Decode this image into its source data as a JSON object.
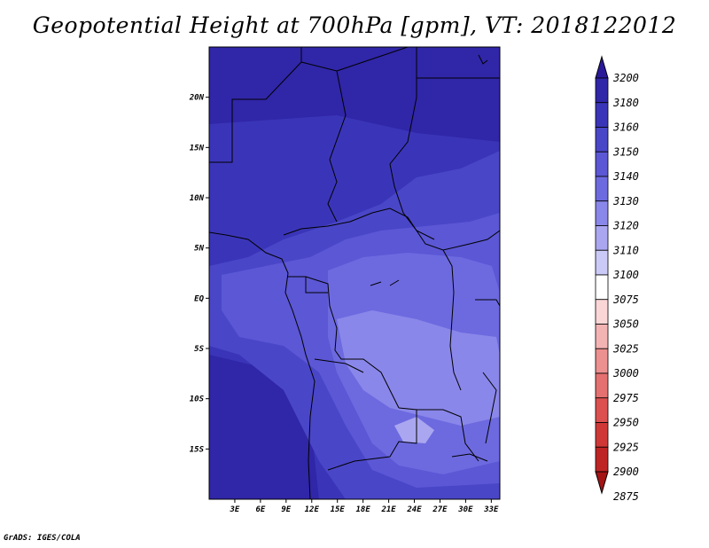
{
  "title": "Geopotential Height at 700hPa [gpm], VT: 2018122012",
  "footer": "GrADS: IGES/COLA",
  "map": {
    "lat_range": [
      -20,
      25
    ],
    "lon_range": [
      0,
      34
    ],
    "lat_ticks": [
      {
        "value": 20,
        "label": "20N"
      },
      {
        "value": 15,
        "label": "15N"
      },
      {
        "value": 10,
        "label": "10N"
      },
      {
        "value": 5,
        "label": "5N"
      },
      {
        "value": 0,
        "label": "EQ"
      },
      {
        "value": -5,
        "label": "5S"
      },
      {
        "value": -10,
        "label": "10S"
      },
      {
        "value": -15,
        "label": "15S"
      }
    ],
    "lon_ticks": [
      {
        "value": 3,
        "label": "3E"
      },
      {
        "value": 6,
        "label": "6E"
      },
      {
        "value": 9,
        "label": "9E"
      },
      {
        "value": 12,
        "label": "12E"
      },
      {
        "value": 15,
        "label": "15E"
      },
      {
        "value": 18,
        "label": "18E"
      },
      {
        "value": 21,
        "label": "21E"
      },
      {
        "value": 24,
        "label": "24E"
      },
      {
        "value": 27,
        "label": "27E"
      },
      {
        "value": 30,
        "label": "30E"
      },
      {
        "value": 33,
        "label": "33E"
      }
    ]
  },
  "colorbar": {
    "levels": [
      "3200",
      "3180",
      "3160",
      "3150",
      "3140",
      "3130",
      "3120",
      "3110",
      "3100",
      "3075",
      "3050",
      "3025",
      "3000",
      "2975",
      "2950",
      "2925",
      "2900",
      "2875"
    ],
    "colors": [
      "#2a1a9a",
      "#3026a8",
      "#3a35b8",
      "#4a46c8",
      "#5b57d5",
      "#6d6ae0",
      "#8a87ea",
      "#aaa7f0",
      "#cbc9f6",
      "#ffffff",
      "#fbd6d6",
      "#f4b3b3",
      "#ec9090",
      "#e57070",
      "#dd5050",
      "#d03838",
      "#bf2424",
      "#a51414"
    ]
  }
}
